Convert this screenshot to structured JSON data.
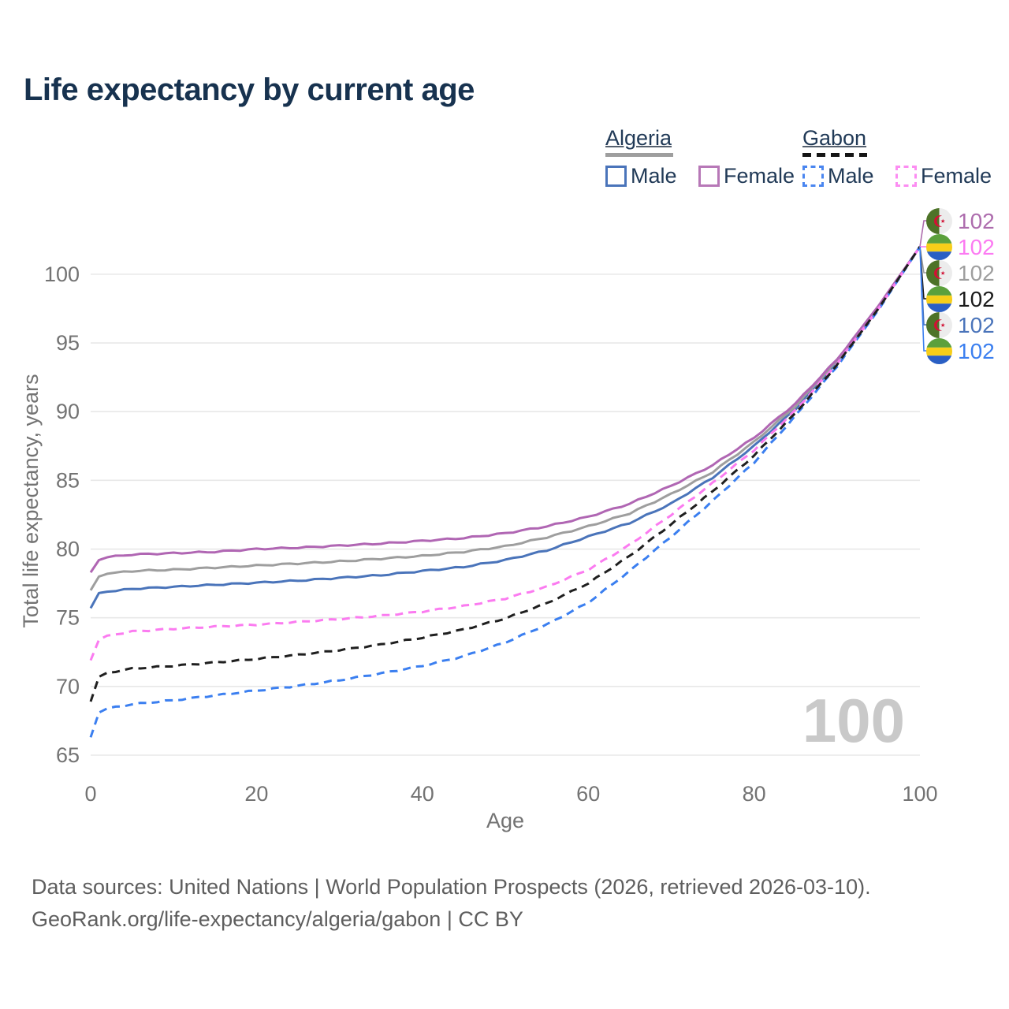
{
  "header": {
    "title": "Life expectancy by current age"
  },
  "legend": {
    "groups": [
      {
        "country": "Algeria",
        "line_style": "solid",
        "line_color": "#9e9e9e",
        "items": [
          {
            "label": "Male",
            "color": "#4a74ba",
            "style": "solid"
          },
          {
            "label": "Female",
            "color": "#b778b7",
            "style": "solid"
          }
        ]
      },
      {
        "country": "Gabon",
        "line_style": "dashed",
        "line_color": "#151515",
        "items": [
          {
            "label": "Male",
            "color": "#4a86f0",
            "style": "dashed"
          },
          {
            "label": "Female",
            "color": "#fc8df2",
            "style": "dashed"
          }
        ]
      }
    ]
  },
  "chart_data": {
    "type": "line",
    "title": "Life expectancy by current age",
    "xlabel": "Age",
    "ylabel": "Total life expectancy, years",
    "xlim": [
      0,
      100
    ],
    "ylim": [
      65,
      102
    ],
    "xticks": [
      0,
      20,
      40,
      60,
      80,
      100
    ],
    "yticks": [
      65,
      70,
      75,
      80,
      85,
      90,
      95,
      100
    ],
    "grid": "horizontal-only",
    "legend_position": "top-right",
    "hover_age_watermark": "100",
    "x": [
      0,
      1,
      2,
      5,
      10,
      15,
      20,
      25,
      30,
      35,
      40,
      45,
      50,
      55,
      60,
      65,
      70,
      75,
      80,
      85,
      90,
      95,
      100
    ],
    "series": [
      {
        "id": "algeria-male",
        "country": "Algeria",
        "sex": "Male",
        "color": "#4a74ba",
        "dashed": false,
        "values": [
          75.7,
          76.8,
          76.9,
          77.1,
          77.25,
          77.4,
          77.55,
          77.7,
          77.9,
          78.1,
          78.4,
          78.7,
          79.2,
          79.9,
          80.9,
          81.9,
          83.3,
          85.2,
          87.5,
          90.2,
          93.6,
          97.6,
          102
        ]
      },
      {
        "id": "algeria-all",
        "country": "Algeria",
        "sex": "All",
        "color": "#9e9e9e",
        "dashed": false,
        "values": [
          77.0,
          78.0,
          78.2,
          78.4,
          78.5,
          78.65,
          78.8,
          78.95,
          79.1,
          79.3,
          79.5,
          79.8,
          80.2,
          80.85,
          81.65,
          82.6,
          84.0,
          85.6,
          87.8,
          90.4,
          93.7,
          97.6,
          102
        ]
      },
      {
        "id": "algeria-female",
        "country": "Algeria",
        "sex": "Female",
        "color": "#b066b3",
        "dashed": false,
        "values": [
          78.3,
          79.2,
          79.4,
          79.6,
          79.7,
          79.8,
          80.0,
          80.1,
          80.25,
          80.4,
          80.6,
          80.8,
          81.15,
          81.65,
          82.35,
          83.3,
          84.6,
          86.1,
          88.1,
          90.6,
          93.8,
          97.7,
          102
        ]
      },
      {
        "id": "gabon-male",
        "country": "Gabon",
        "sex": "Male",
        "color": "#3b7ff0",
        "dashed": true,
        "values": [
          66.3,
          68.1,
          68.4,
          68.7,
          69.0,
          69.35,
          69.7,
          70.05,
          70.45,
          70.95,
          71.5,
          72.2,
          73.2,
          74.5,
          76.1,
          78.4,
          80.9,
          83.5,
          86.3,
          89.7,
          93.3,
          97.4,
          102
        ]
      },
      {
        "id": "gabon-female",
        "country": "Gabon",
        "sex": "Female",
        "color": "#fb7bf0",
        "dashed": true,
        "values": [
          71.9,
          73.4,
          73.7,
          74.0,
          74.2,
          74.35,
          74.5,
          74.7,
          74.9,
          75.15,
          75.45,
          75.85,
          76.4,
          77.25,
          78.5,
          80.3,
          82.5,
          84.8,
          87.2,
          90.1,
          93.5,
          97.5,
          102
        ]
      },
      {
        "id": "gabon-all",
        "country": "Gabon",
        "sex": "All",
        "color": "#1f1f1f",
        "dashed": true,
        "values": [
          68.9,
          70.7,
          71.0,
          71.3,
          71.5,
          71.75,
          72.0,
          72.3,
          72.65,
          73.05,
          73.55,
          74.15,
          74.95,
          76.05,
          77.5,
          79.5,
          81.8,
          84.2,
          86.8,
          89.9,
          93.4,
          97.5,
          102
        ]
      }
    ],
    "end_labels": [
      {
        "flag": "algeria",
        "series": "algeria-female",
        "value": "102",
        "color": "#ad6cad"
      },
      {
        "flag": "gabon",
        "series": "gabon-female",
        "value": "102",
        "color": "#fc7af2"
      },
      {
        "flag": "algeria",
        "series": "algeria-all",
        "value": "102",
        "color": "#9e9e9e"
      },
      {
        "flag": "gabon",
        "series": "gabon-all",
        "value": "102",
        "color": "#1a1a1a"
      },
      {
        "flag": "algeria",
        "series": "algeria-male",
        "value": "102",
        "color": "#4a74ba"
      },
      {
        "flag": "gabon",
        "series": "gabon-male",
        "value": "102",
        "color": "#3b7ff0"
      }
    ]
  },
  "footer": {
    "line1": "Data sources: United Nations | World Population Prospects (2026, retrieved 2026-03-10).",
    "line2": "GeoRank.org/life-expectancy/algeria/gabon | CC BY"
  }
}
